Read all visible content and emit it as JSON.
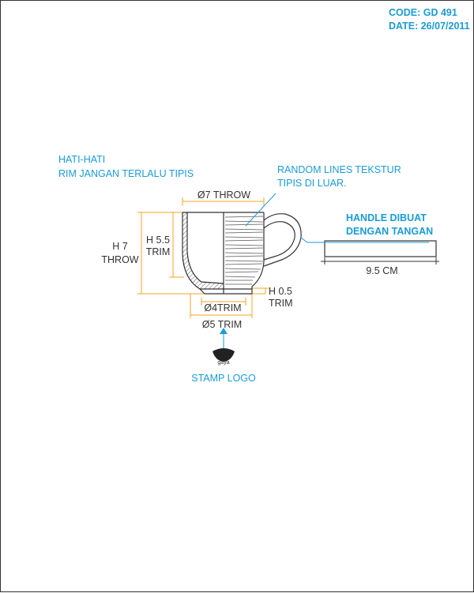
{
  "header": {
    "code": "CODE: GD 491",
    "date": "DATE: 26/07/2011"
  },
  "notes": {
    "rim_warning_line1": "HATI-HATI",
    "rim_warning_line2": "RIM JANGAN TERLALU TIPIS",
    "texture_line1": "RANDOM LINES TEKSTUR",
    "texture_line2": "TIPIS DI LUAR.",
    "handle_line1": "HANDLE DIBUAT",
    "handle_line2": "DENGAN TANGAN",
    "stamp": "STAMP LOGO",
    "logo_text": "gaya"
  },
  "dimensions": {
    "top_diameter": "Ø7 THROW",
    "total_height_line1": "H 7",
    "total_height_line2": "THROW",
    "inner_height_line1": "H 5.5",
    "inner_height_line2": "TRIM",
    "foot_height_line1": "H 0.5",
    "foot_height_line2": "TRIM",
    "foot_inner_diameter": "Ø4TRIM",
    "foot_outer_diameter": "Ø5 TRIM",
    "handle_length": "9.5 CM"
  },
  "colors": {
    "annotation": "#1a9bd7",
    "dimension": "#f5a623",
    "line": "#333333"
  }
}
